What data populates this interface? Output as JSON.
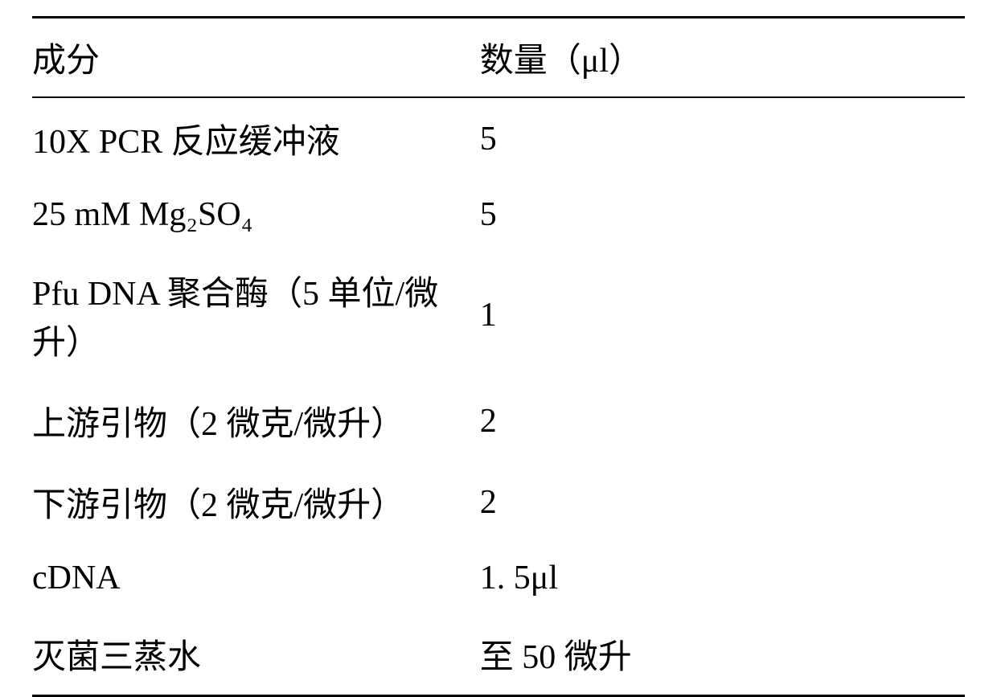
{
  "table": {
    "headers": {
      "component": "成分",
      "quantity": "数量（μl）"
    },
    "rows": [
      {
        "component": "10X PCR 反应缓冲液",
        "quantity": "5"
      },
      {
        "component": "25 mM Mg₂SO₄",
        "quantity": "5"
      },
      {
        "component": "Pfu DNA 聚合酶（5 单位/微升）",
        "quantity": "1"
      },
      {
        "component": "上游引物（2 微克/微升）",
        "quantity": "2"
      },
      {
        "component": "下游引物（2 微克/微升）",
        "quantity": "2"
      },
      {
        "component": "cDNA",
        "quantity": "1. 5μl"
      },
      {
        "component": "灭菌三蒸水",
        "quantity": "至 50 微升"
      }
    ],
    "styling": {
      "background_color": "#ffffff",
      "text_color": "#000000",
      "border_color": "#000000",
      "top_border_width": 3,
      "header_bottom_border_width": 2,
      "bottom_border_width": 3,
      "font_size": 42,
      "font_family": "SimSun",
      "col_widths": [
        "48%",
        "52%"
      ],
      "row_padding_vertical": 20
    }
  }
}
